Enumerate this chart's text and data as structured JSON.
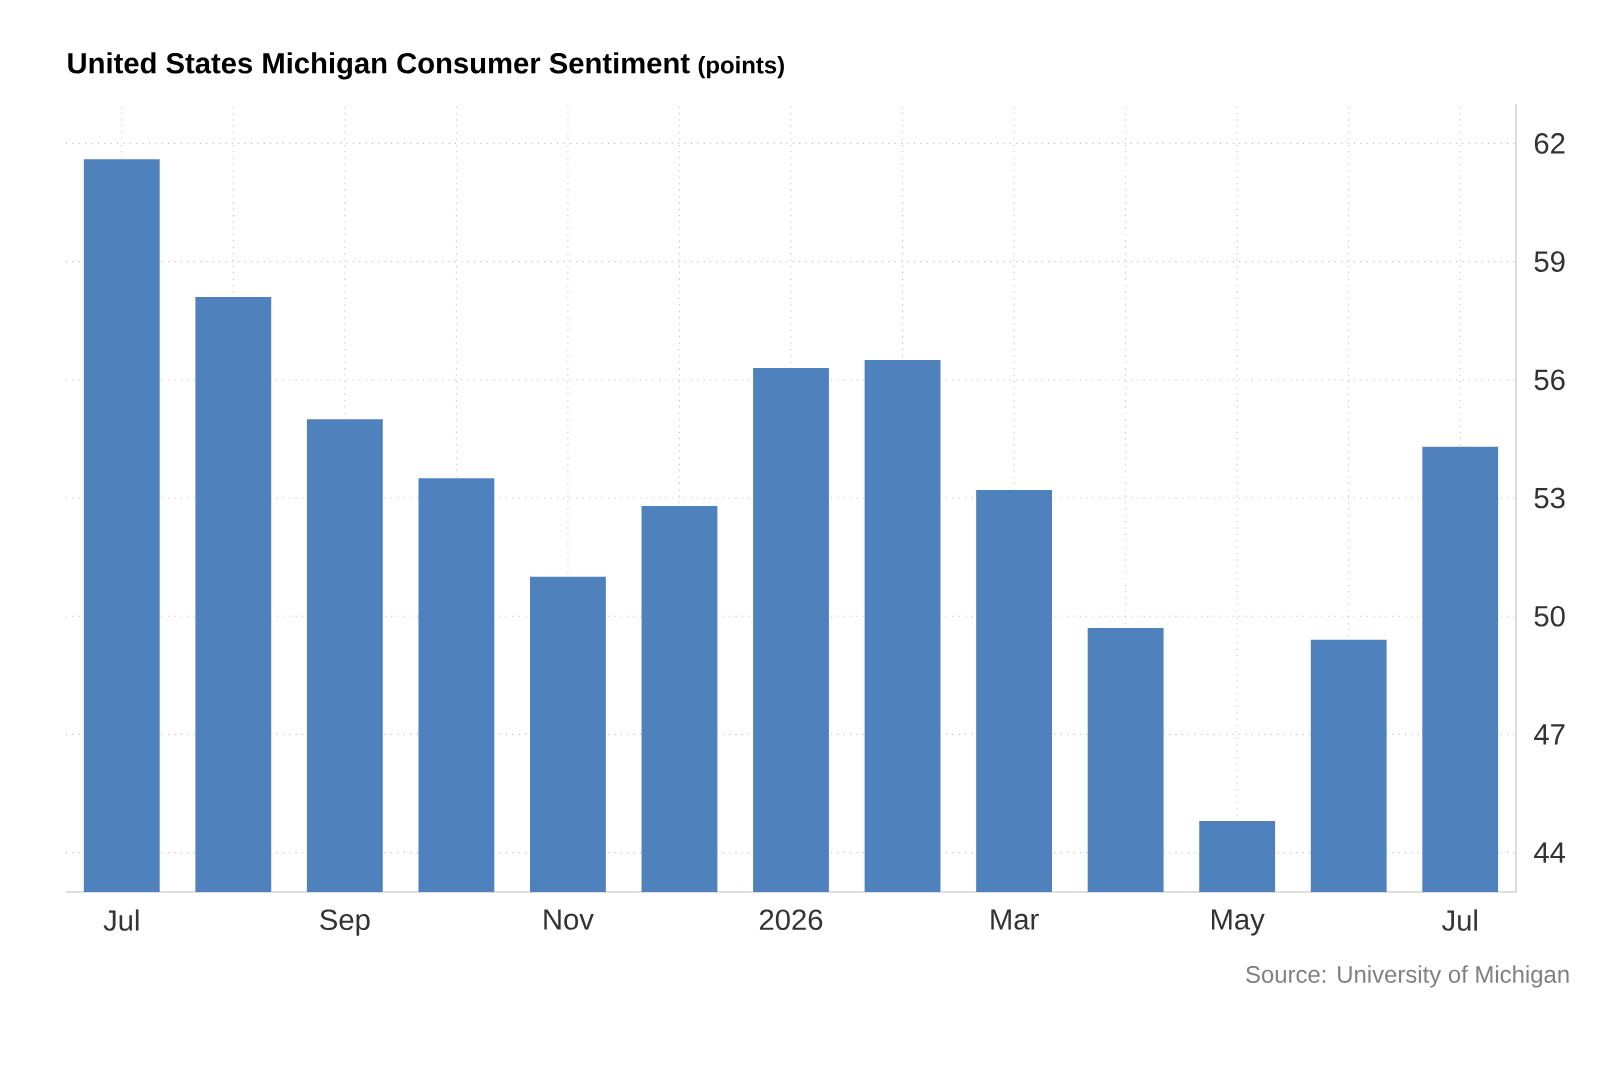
{
  "chart_data": {
    "type": "bar",
    "title": "United States Michigan Consumer Sentiment",
    "subtitle": "(points)",
    "categories": [
      "Jul",
      null,
      "Sep",
      null,
      "Nov",
      null,
      "2026",
      null,
      "Mar",
      null,
      "May",
      null,
      "Jul"
    ],
    "values": [
      61.6,
      58.1,
      55.0,
      53.5,
      51.0,
      52.8,
      56.3,
      56.5,
      53.2,
      49.7,
      44.8,
      49.4,
      54.3
    ],
    "color": "#4f81bd",
    "ylim": [
      43,
      63
    ],
    "yticks": [
      44,
      47,
      50,
      53,
      56,
      59,
      62
    ],
    "grid": true,
    "annotations": [
      "Source: University of Michigan"
    ]
  }
}
